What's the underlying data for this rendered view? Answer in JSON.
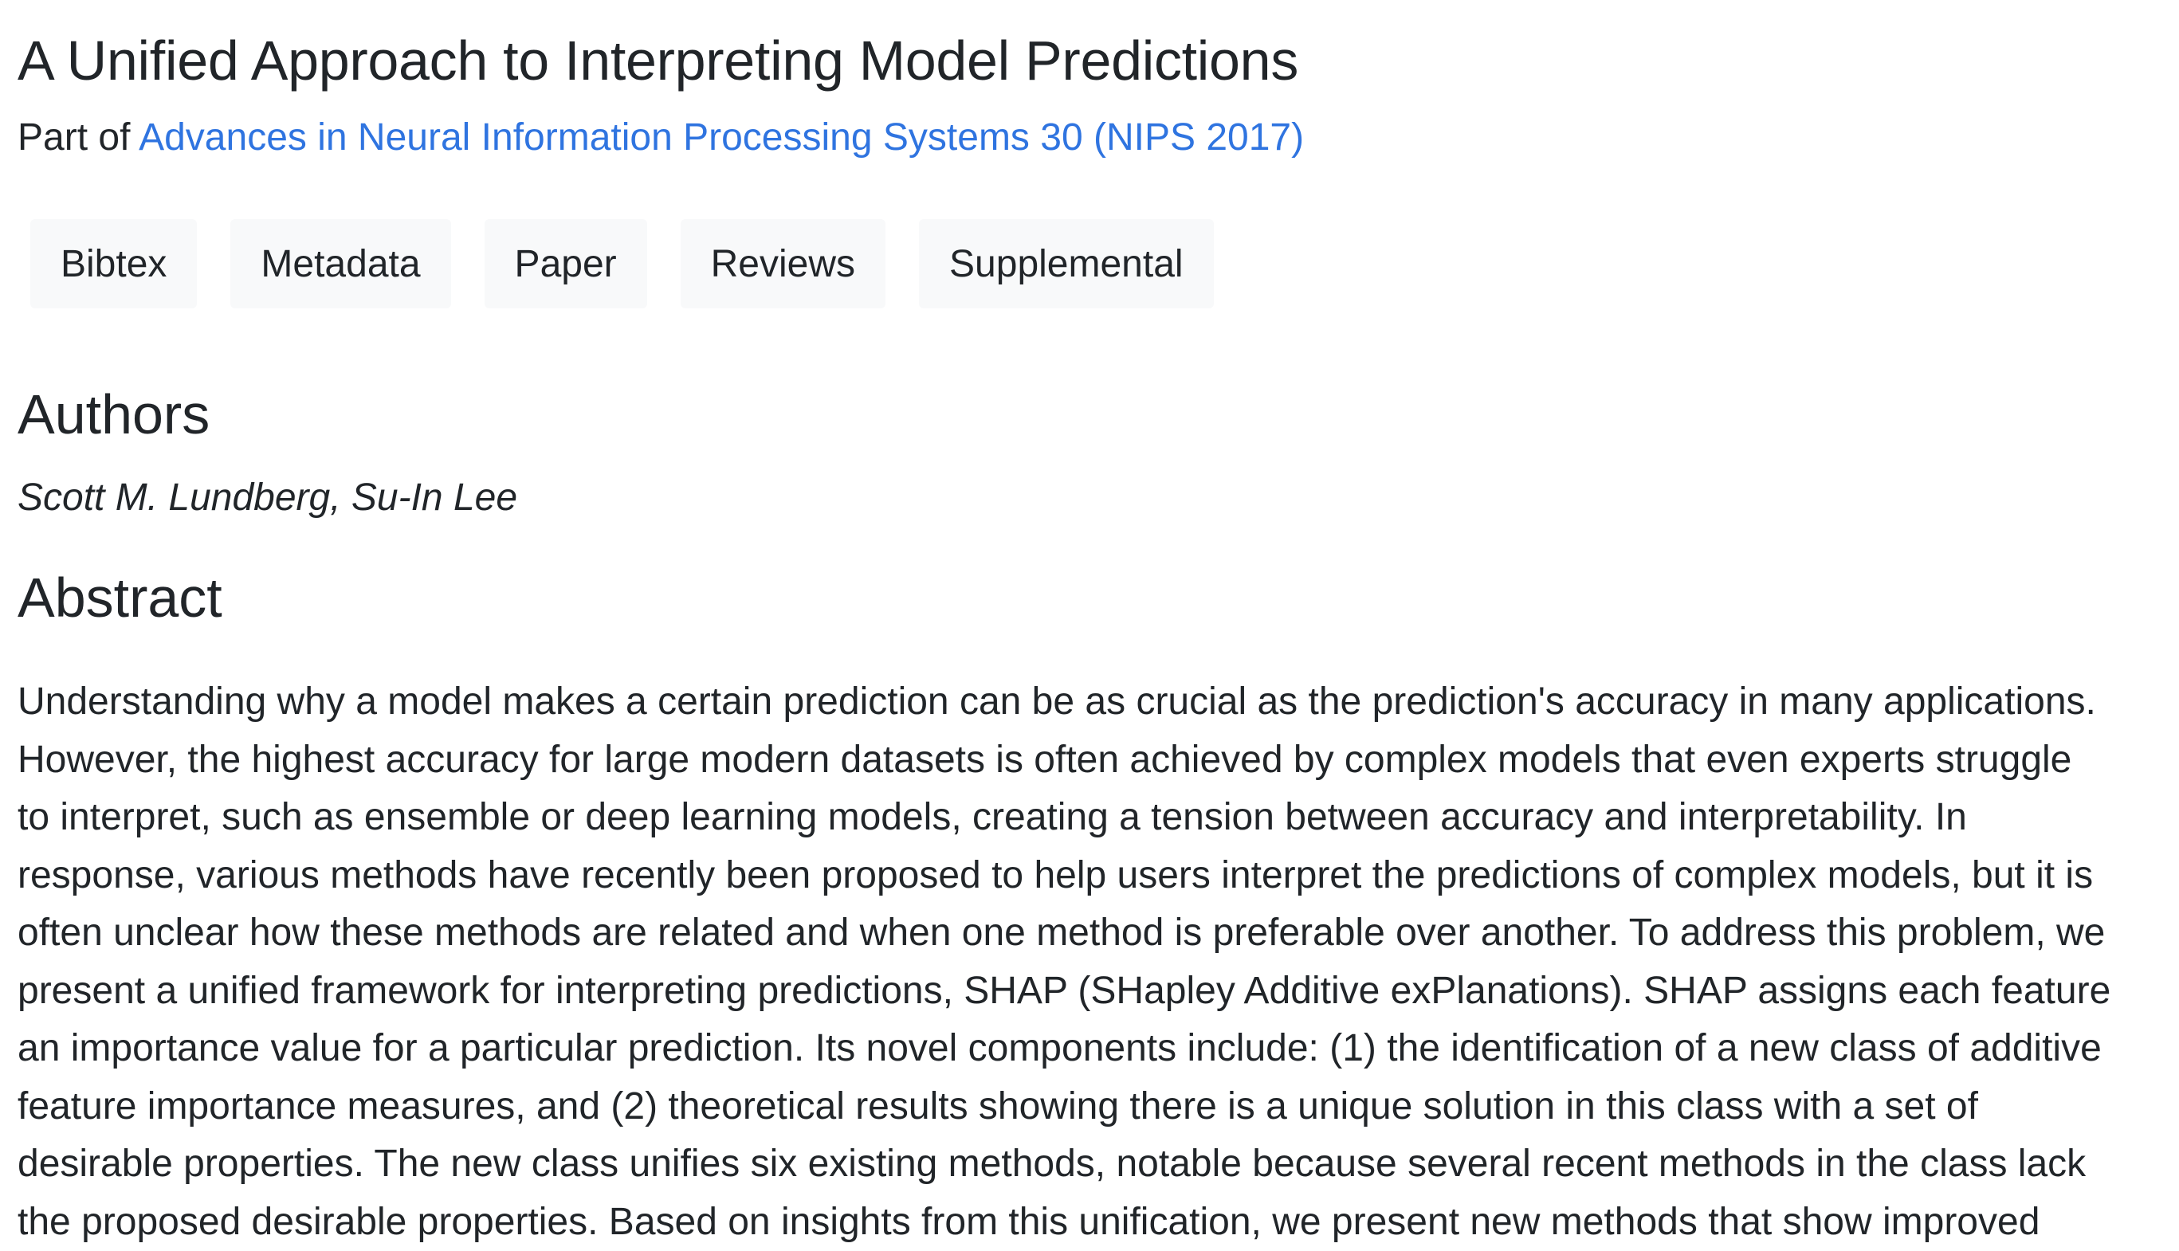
{
  "title": "A Unified Approach to Interpreting Model Predictions",
  "part_of": {
    "prefix": "Part of ",
    "link_text": "Advances in Neural Information Processing Systems 30 (NIPS 2017)"
  },
  "tabs": [
    "Bibtex",
    "Metadata",
    "Paper",
    "Reviews",
    "Supplemental"
  ],
  "authors": {
    "heading": "Authors",
    "names": "Scott M. Lundberg, Su-In Lee"
  },
  "abstract": {
    "heading": "Abstract",
    "lines": [
      "Understanding why a model makes a certain prediction can be as crucial as the prediction's accuracy in many applications.",
      "However, the highest accuracy for large modern datasets is often achieved by complex models that even experts struggle",
      "to interpret, such as ensemble or deep learning models, creating a tension between accuracy and interpretability. In",
      "response, various methods have recently been proposed to help users interpret the predictions of complex models, but it is",
      "often unclear how these methods are related and when one method is preferable over another. To address this problem, we",
      "present a unified framework for interpreting predictions, SHAP (SHapley Additive exPlanations). SHAP assigns each feature",
      "an importance value for a particular prediction. Its novel components include: (1) the identification of a new class of additive",
      "feature importance measures, and (2) theoretical results showing there is a unique solution in this class with a set of",
      "desirable properties. The new class unifies six existing methods, notable because several recent methods in the class lack",
      "the proposed desirable properties. Based on insights from this unification, we present new methods that show improved"
    ]
  }
}
